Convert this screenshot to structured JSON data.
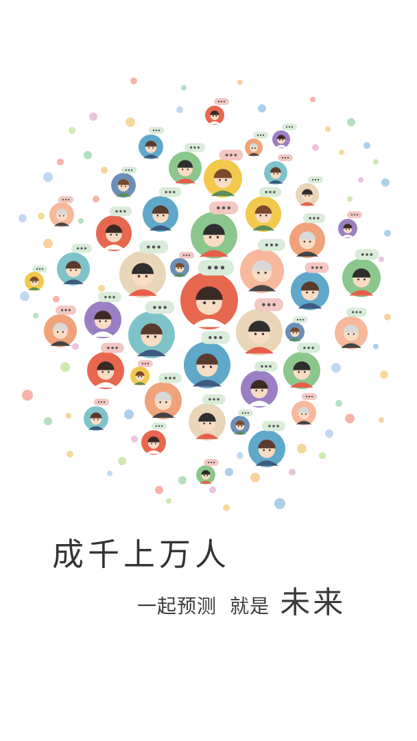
{
  "splash": {
    "headline": "成千上万人",
    "tagline_part1": "一起预测",
    "tagline_part2": "就是",
    "tagline_emphasis": "未来"
  },
  "palette": {
    "bg": "#ffffff",
    "text": "#333333",
    "circles": [
      "#e8674f",
      "#5fa8c9",
      "#8bc78d",
      "#f2c94c",
      "#f0a27a",
      "#9b7fc4",
      "#7ec3c9",
      "#e9d6b8",
      "#6b8fb8",
      "#f7b89b"
    ],
    "bubble": "#d9ecd9",
    "bubble_pink": "#f3c7c2",
    "dot_colors": [
      "#f4a79a",
      "#a7d9b5",
      "#f6c98d",
      "#9cc8e6",
      "#e7b9d8",
      "#c7e3a3",
      "#f3d28a",
      "#b7d0f0"
    ]
  }
}
